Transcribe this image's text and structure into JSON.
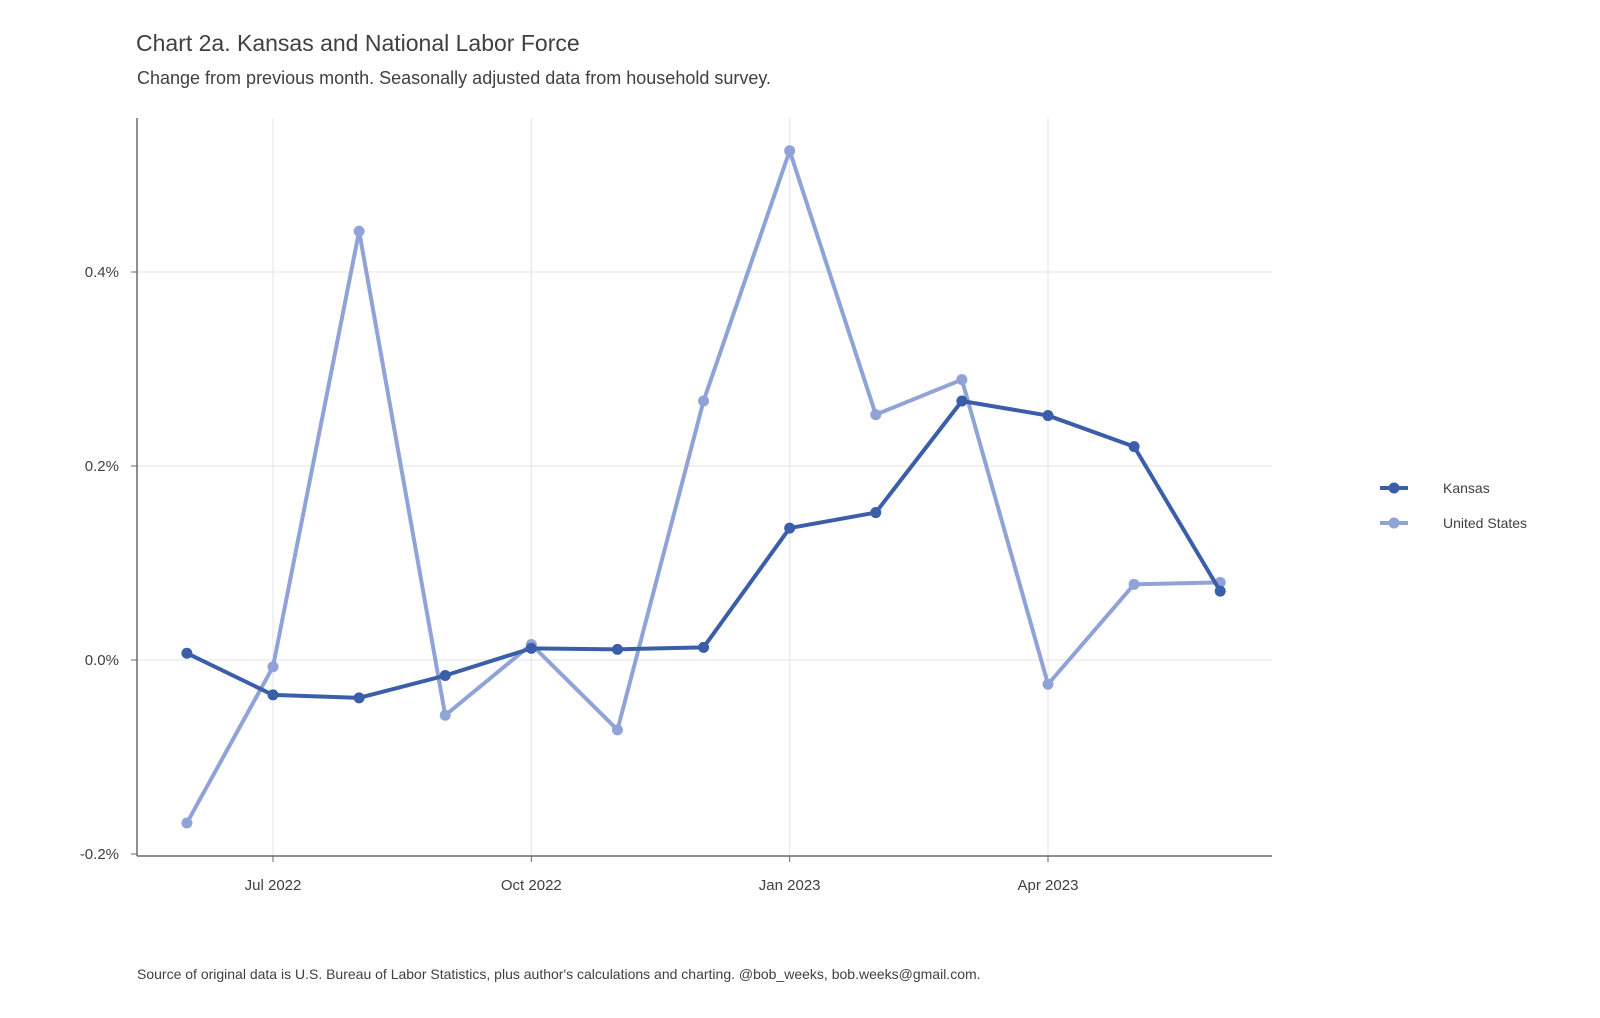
{
  "title": "Chart 2a. Kansas and National Labor Force",
  "subtitle": "Change from previous month. Seasonally adjusted data from household survey.",
  "caption": "Source of original data is U.S. Bureau of Labor Statistics, plus author's calculations and charting. @bob_weeks, bob.weeks@gmail.com.",
  "chart_data": {
    "type": "line",
    "x": [
      "2022-06",
      "2022-07",
      "2022-08",
      "2022-09",
      "2022-10",
      "2022-11",
      "2022-12",
      "2023-01",
      "2023-02",
      "2023-03",
      "2023-04",
      "2023-05",
      "2023-06"
    ],
    "x_tick_labels": [
      "Jul 2022",
      "Oct 2022",
      "Jan 2023",
      "Apr 2023"
    ],
    "x_tick_positions": [
      "2022-07",
      "2022-10",
      "2023-01",
      "2023-04"
    ],
    "y_tick_labels": [
      "-0.2%",
      "0.0%",
      "0.2%",
      "0.4%"
    ],
    "y_tick_values": [
      -0.2,
      0.0,
      0.2,
      0.4
    ],
    "ylim": [
      -0.2,
      0.56
    ],
    "y_unit": "%",
    "grid": true,
    "legend_position": "right",
    "series": [
      {
        "name": "Kansas",
        "color": "#3a5fa8",
        "values": [
          0.007,
          -0.036,
          -0.039,
          -0.016,
          0.012,
          0.011,
          0.013,
          0.136,
          0.152,
          0.267,
          0.252,
          0.22,
          0.071
        ]
      },
      {
        "name": "United States",
        "color": "#8fa3d6",
        "values": [
          -0.168,
          -0.007,
          0.442,
          -0.057,
          0.016,
          -0.072,
          0.267,
          0.525,
          0.253,
          0.289,
          -0.025,
          0.078,
          0.08
        ]
      }
    ]
  }
}
